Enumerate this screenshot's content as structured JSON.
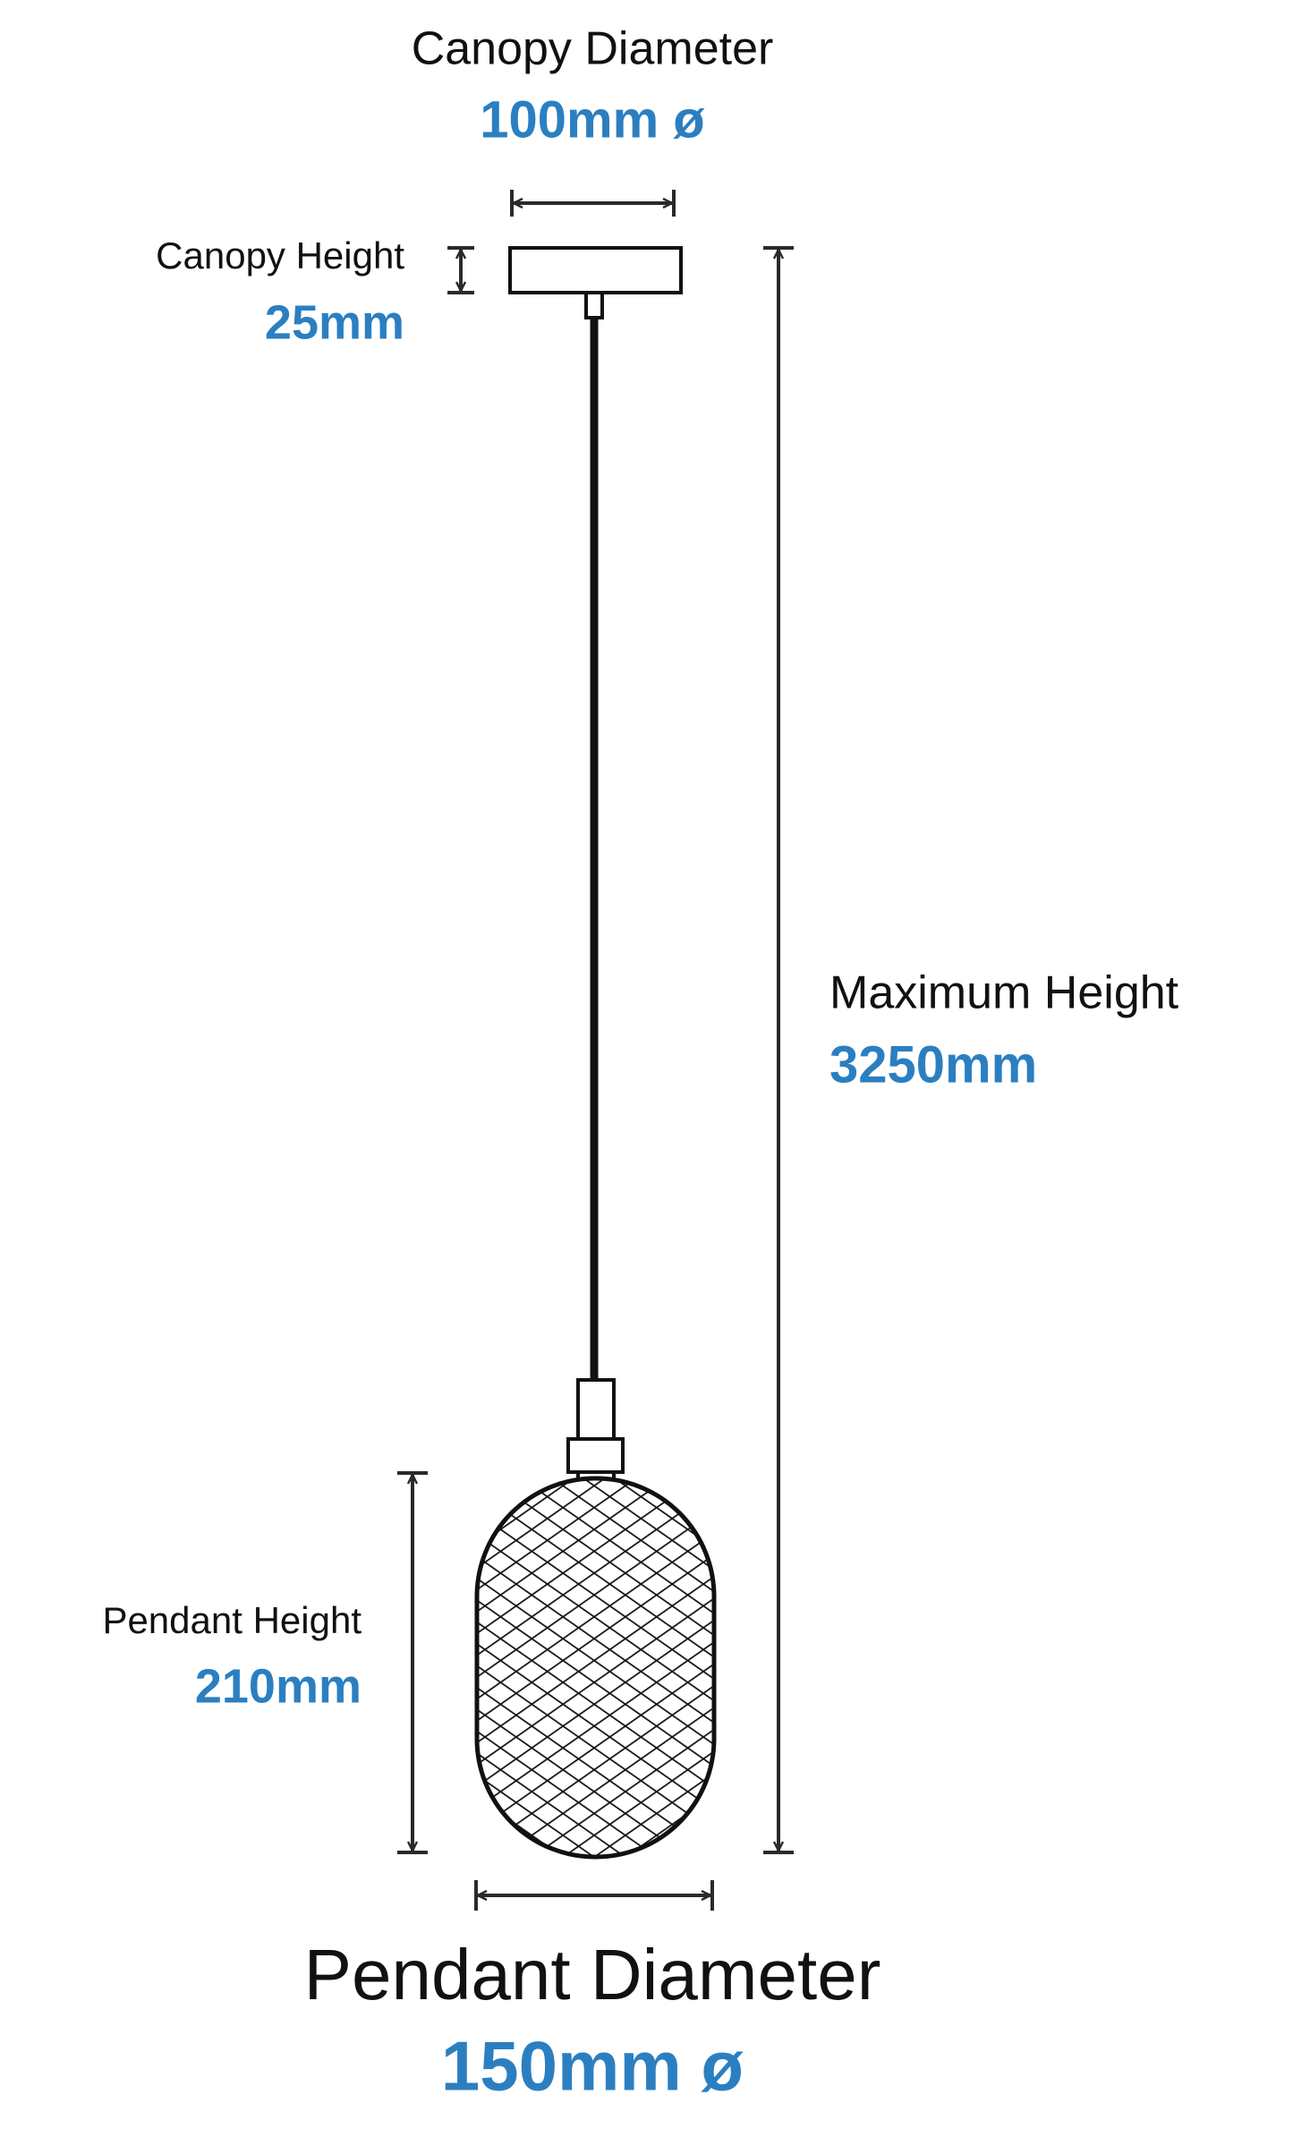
{
  "canopy_diameter": {
    "label": "Canopy Diameter",
    "value": "100mm ø"
  },
  "canopy_height": {
    "label": "Canopy Height",
    "value": "25mm"
  },
  "maximum_height": {
    "label": "Maximum Height",
    "value": "3250mm"
  },
  "pendant_height": {
    "label": "Pendant Height",
    "value": "210mm"
  },
  "pendant_diameter": {
    "label": "Pendant Diameter",
    "value": "150mm ø"
  }
}
